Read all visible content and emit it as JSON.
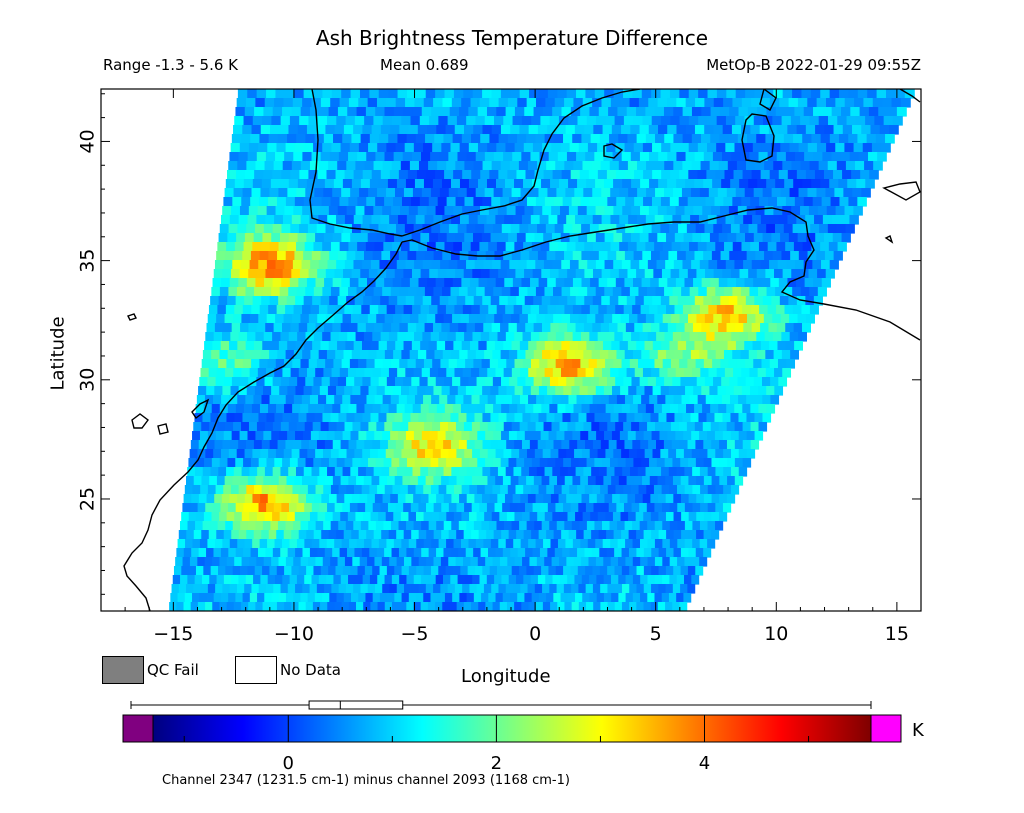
{
  "header": {
    "title": "Ash Brightness Temperature Difference",
    "range_text": "Range -1.3 - 5.6 K",
    "mean_text": "Mean 0.689",
    "satellite_time": "MetOp-B 2022-01-29 09:55Z"
  },
  "legend": {
    "qc_fail": "QC Fail",
    "no_data": "No Data",
    "qc_fail_color": "#7f7f7f",
    "no_data_color": "#ffffff"
  },
  "colorbar": {
    "unit": "K",
    "min": -1.3,
    "max": 5.6,
    "ticks": [
      "0",
      "2",
      "4"
    ],
    "tick_values": [
      0,
      2,
      4
    ],
    "under_color": "#800080",
    "over_color": "#ff00ff",
    "stops": [
      "#00007f",
      "#0000ff",
      "#007fff",
      "#00ffff",
      "#7fff7f",
      "#ffff00",
      "#ff7f00",
      "#ff0000",
      "#7f0000"
    ],
    "boxplot": {
      "min": -1.3,
      "q1": 0.2,
      "median": 0.5,
      "q3": 1.1,
      "max": 5.6
    }
  },
  "footer": {
    "channel_note": "Channel 2347 (1231.5 cm-1) minus channel 2093 (1168 cm-1)"
  },
  "chart_data": {
    "type": "heatmap",
    "title": "Ash Brightness Temperature Difference",
    "xlabel": "Longitude",
    "ylabel": "Latitude",
    "xlim": [
      -18,
      16
    ],
    "ylim": [
      20.3,
      42.2
    ],
    "x_ticks": [
      -15,
      -10,
      -5,
      0,
      5,
      10,
      15
    ],
    "y_ticks": [
      25,
      30,
      35,
      40
    ],
    "x_tick_labels": [
      "−15",
      "−10",
      "−5",
      "0",
      "5",
      "10",
      "15"
    ],
    "y_tick_labels": [
      "25",
      "30",
      "35",
      "40"
    ],
    "swath_lon_lat": [
      [
        -12.3,
        42.2
      ],
      [
        -15.2,
        20.3
      ],
      [
        6.2,
        20.3
      ],
      [
        15.8,
        42.2
      ]
    ],
    "background_value": 0.7,
    "hotspots": [
      {
        "lon": -11.2,
        "lat": 24.8,
        "value": 3.9
      },
      {
        "lon": 1.4,
        "lat": 30.6,
        "value": 3.7
      },
      {
        "lon": 8.0,
        "lat": 32.7,
        "value": 3.4
      },
      {
        "lon": -11.0,
        "lat": 34.8,
        "value": 3.6
      },
      {
        "lon": -4.2,
        "lat": 27.2,
        "value": 2.9
      },
      {
        "lon": -12.8,
        "lat": 30.8,
        "value": 2.0
      },
      {
        "lon": 6.0,
        "lat": 31.0,
        "value": 2.1
      }
    ]
  }
}
